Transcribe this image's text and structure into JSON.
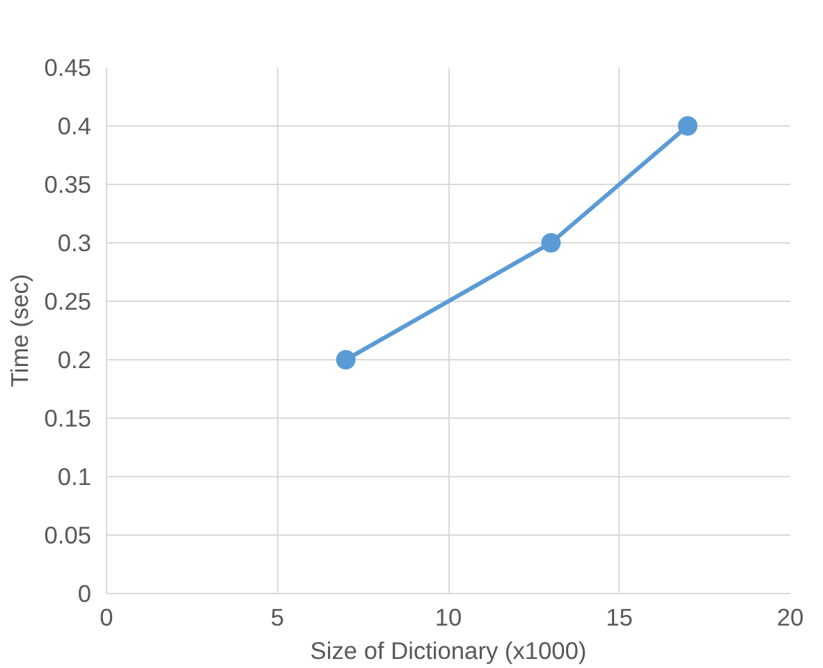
{
  "chart_data": {
    "type": "line",
    "xlabel": "Size of Dictionary (x1000)",
    "ylabel": "Time (sec)",
    "x": [
      7,
      13,
      17
    ],
    "series": [
      {
        "color": "#5b9bd5",
        "values": [
          0.2,
          0.3,
          0.4
        ]
      }
    ],
    "xlim": [
      0,
      20
    ],
    "xticks": [
      0,
      5,
      10,
      15,
      20
    ],
    "ylim": [
      0,
      0.45
    ],
    "yticks": [
      0,
      0.05,
      0.1,
      0.15,
      0.2,
      0.25,
      0.3,
      0.35,
      0.4,
      0.45
    ],
    "grid": true,
    "marker": "circle",
    "line_style": "solid"
  }
}
